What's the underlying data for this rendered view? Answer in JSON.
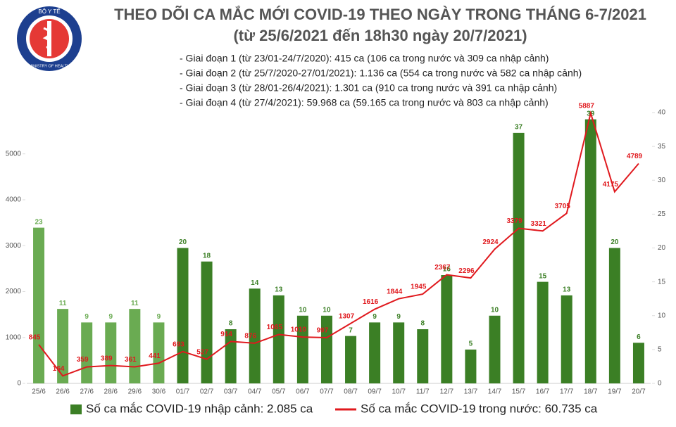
{
  "header": {
    "logo_top": "BỘ Y TẾ",
    "logo_bottom": "MINISTRY OF HEALTH"
  },
  "chart_data": {
    "type": "bar-line",
    "title": "THEO DÕI CA MẮC MỚI COVID-19 THEO NGÀY TRONG THÁNG 6-7/2021",
    "subtitle": "(từ 25/6/2021 đến 18h30 ngày 20/7/2021)",
    "annotations": [
      "- Giai đoạn 1 (từ 23/01-24/7/2020): 415 ca (106 ca trong nước và 309 ca nhập cảnh)",
      "- Giai đoạn 2 (từ 25/7/2020-27/01/2021): 1.136 ca (554 ca trong nước và 582 ca nhập cảnh)",
      "- Giai đoạn 3 (từ 28/01-26/4/2021): 1.301 ca (910 ca trong nước và 391 ca nhập cảnh)",
      "- Giai đoạn 4 (từ 27/4/2021): 59.968 ca (59.165 ca trong nước và 803 ca nhập cảnh)"
    ],
    "categories": [
      "25/6",
      "26/6",
      "27/6",
      "28/6",
      "29/6",
      "30/6",
      "01/7",
      "02/7",
      "03/7",
      "04/7",
      "05/7",
      "06/7",
      "07/7",
      "08/7",
      "09/7",
      "10/7",
      "11/7",
      "12/7",
      "13/7",
      "14/7",
      "15/7",
      "16/7",
      "17/7",
      "18/7",
      "19/7",
      "20/7"
    ],
    "series": [
      {
        "name": "Số ca mắc COVID-19 nhập cảnh: 2.085 ca",
        "type": "bar",
        "axis": "y2",
        "color": "#3b7f25",
        "bar_colors": [
          "#6aab52",
          "#6aab52",
          "#6aab52",
          "#6aab52",
          "#6aab52",
          "#6aab52",
          "#3b7f25",
          "#3b7f25",
          "#3b7f25",
          "#3b7f25",
          "#3b7f25",
          "#3b7f25",
          "#3b7f25",
          "#3b7f25",
          "#3b7f25",
          "#3b7f25",
          "#3b7f25",
          "#3b7f25",
          "#3b7f25",
          "#3b7f25",
          "#3b7f25",
          "#3b7f25",
          "#3b7f25",
          "#3b7f25",
          "#3b7f25",
          "#3b7f25"
        ],
        "values": [
          23,
          11,
          9,
          9,
          11,
          9,
          20,
          18,
          8,
          14,
          13,
          10,
          10,
          7,
          9,
          9,
          8,
          16,
          5,
          10,
          37,
          15,
          13,
          39,
          20,
          6
        ]
      },
      {
        "name": "Số ca mắc COVID-19 trong nước: 60.735 ca",
        "type": "line",
        "color": "#e0191e",
        "values": [
          845,
          164,
          359,
          389,
          361,
          441,
          693,
          527,
          914,
          876,
          1065,
          1010,
          997,
          1307,
          1616,
          1844,
          1945,
          2367,
          2296,
          2924,
          3379,
          3321,
          3705,
          5887,
          4175,
          4789
        ]
      }
    ],
    "ylim": [
      0,
      5900
    ],
    "yticks": [
      0,
      1000,
      2000,
      3000,
      4000,
      5000
    ],
    "y2lim": [
      0,
      40
    ],
    "y2ticks": [
      0,
      5,
      10,
      15,
      20,
      25,
      30,
      35,
      40
    ],
    "grid": false
  }
}
